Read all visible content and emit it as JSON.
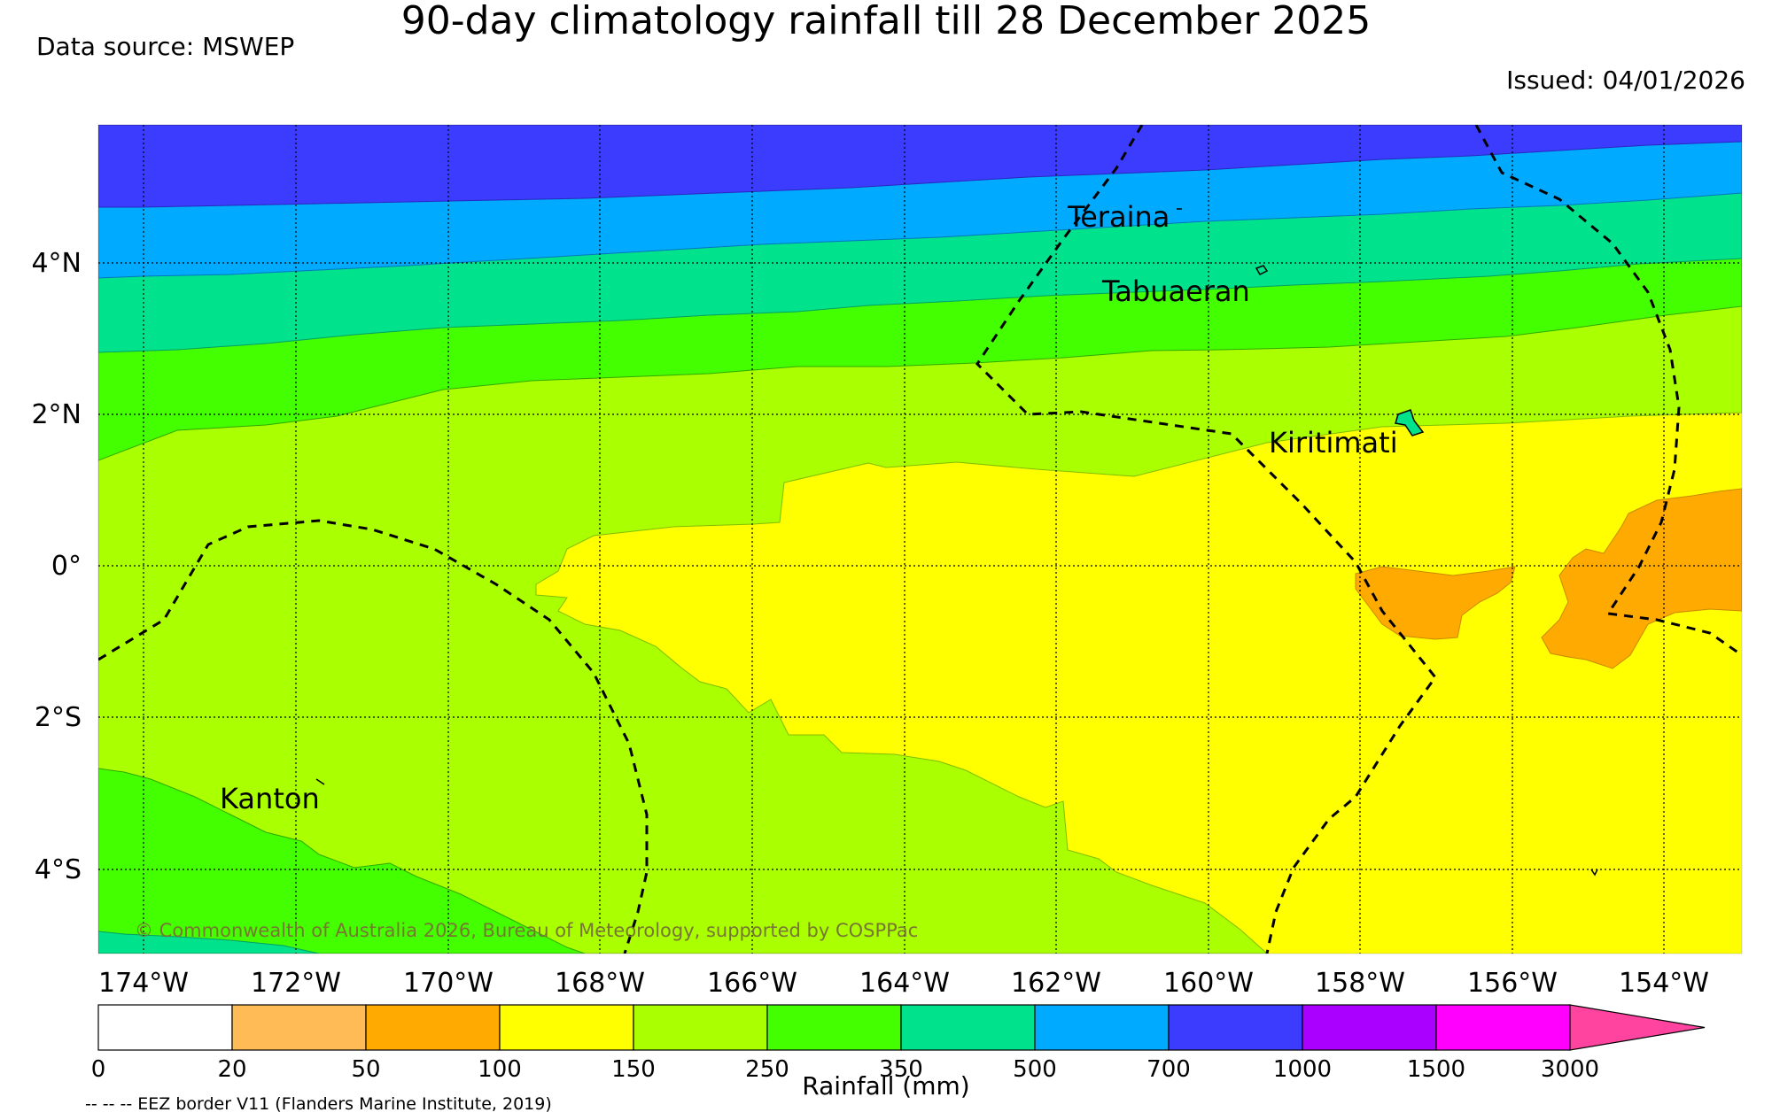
{
  "title": "90-day climatology rainfall till 28 December 2025",
  "data_source": "Data source: MSWEP",
  "issued": "Issued: 04/01/2026",
  "copyright": "© Commonwealth of Australia 2026, Bureau of Meteorology, supported by COSPPac",
  "eez_note": "-- -- -- EEZ border V11 (Flanders Marine Institute, 2019)",
  "colorbar_label": "Rainfall (mm)",
  "longitude_labels": [
    "174°W",
    "172°W",
    "170°W",
    "168°W",
    "166°W",
    "164°W",
    "162°W",
    "160°W",
    "158°W",
    "156°W",
    "154°W"
  ],
  "latitude_labels": [
    "4°N",
    "2°N",
    "0°",
    "2°S",
    "4°S"
  ],
  "places": [
    "Teraina",
    "Tabuaeran",
    "Kiritimati",
    "Kanton"
  ],
  "colorbar_ticks": [
    "0",
    "20",
    "50",
    "100",
    "150",
    "250",
    "350",
    "500",
    "700",
    "1000",
    "1500",
    "3000"
  ],
  "colorbar_colors": [
    "#ffffff",
    "#ffbb55",
    "#ffaa00",
    "#ffff00",
    "#aaff00",
    "#44ff00",
    "#00e38c",
    "#00aaff",
    "#3c3cff",
    "#aa00ff",
    "#ff00ff",
    "#ff44a0"
  ],
  "colors": {
    "band_purple": "#3c3cff",
    "band_blue": "#00aaff",
    "band_teal": "#00e38c",
    "band_green": "#44ff00",
    "band_lime": "#aaff00",
    "band_yellow": "#ffff00",
    "band_orange": "#ffaa00",
    "copyright_text": "#777733"
  }
}
